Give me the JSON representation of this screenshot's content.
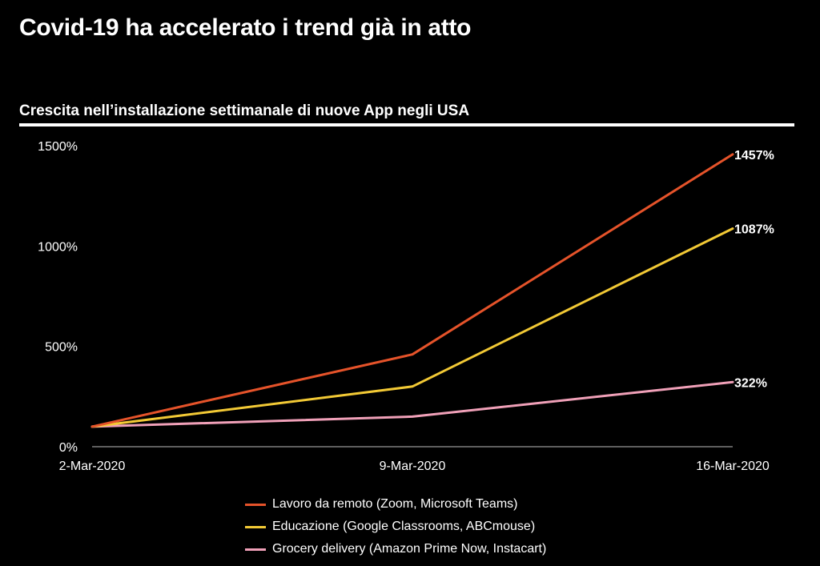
{
  "header": {
    "title": "Covid-19 ha accelerato i trend già in atto",
    "subtitle": "Crescita nell’installazione settimanale di nuove App negli USA"
  },
  "colors": {
    "background": "#000000",
    "text": "#ffffff",
    "axis": "#bbbbbb"
  },
  "chart_data": {
    "type": "line",
    "title": "Crescita nell’installazione settimanale di nuove App negli USA",
    "xlabel": "",
    "ylabel": "",
    "categories": [
      "2-Mar-2020",
      "9-Mar-2020",
      "16-Mar-2020"
    ],
    "ylim": [
      0,
      1500
    ],
    "yticks": [
      0,
      500,
      1000,
      1500
    ],
    "ytick_labels": [
      "0%",
      "500%",
      "1000%",
      "1500%"
    ],
    "grid": false,
    "legend_position": "bottom-center",
    "series": [
      {
        "name": "Lavoro da remoto (Zoom, Microsoft Teams)",
        "values": [
          100,
          460,
          1457
        ],
        "color": "#e5532a",
        "end_label": "1457%"
      },
      {
        "name": "Educazione (Google Classrooms, ABCmouse)",
        "values": [
          100,
          300,
          1087
        ],
        "color": "#f2c935",
        "end_label": "1087%"
      },
      {
        "name": "Grocery delivery (Amazon Prime Now, Instacart)",
        "values": [
          100,
          150,
          322
        ],
        "color": "#f0a0b8",
        "end_label": "322%"
      }
    ]
  }
}
